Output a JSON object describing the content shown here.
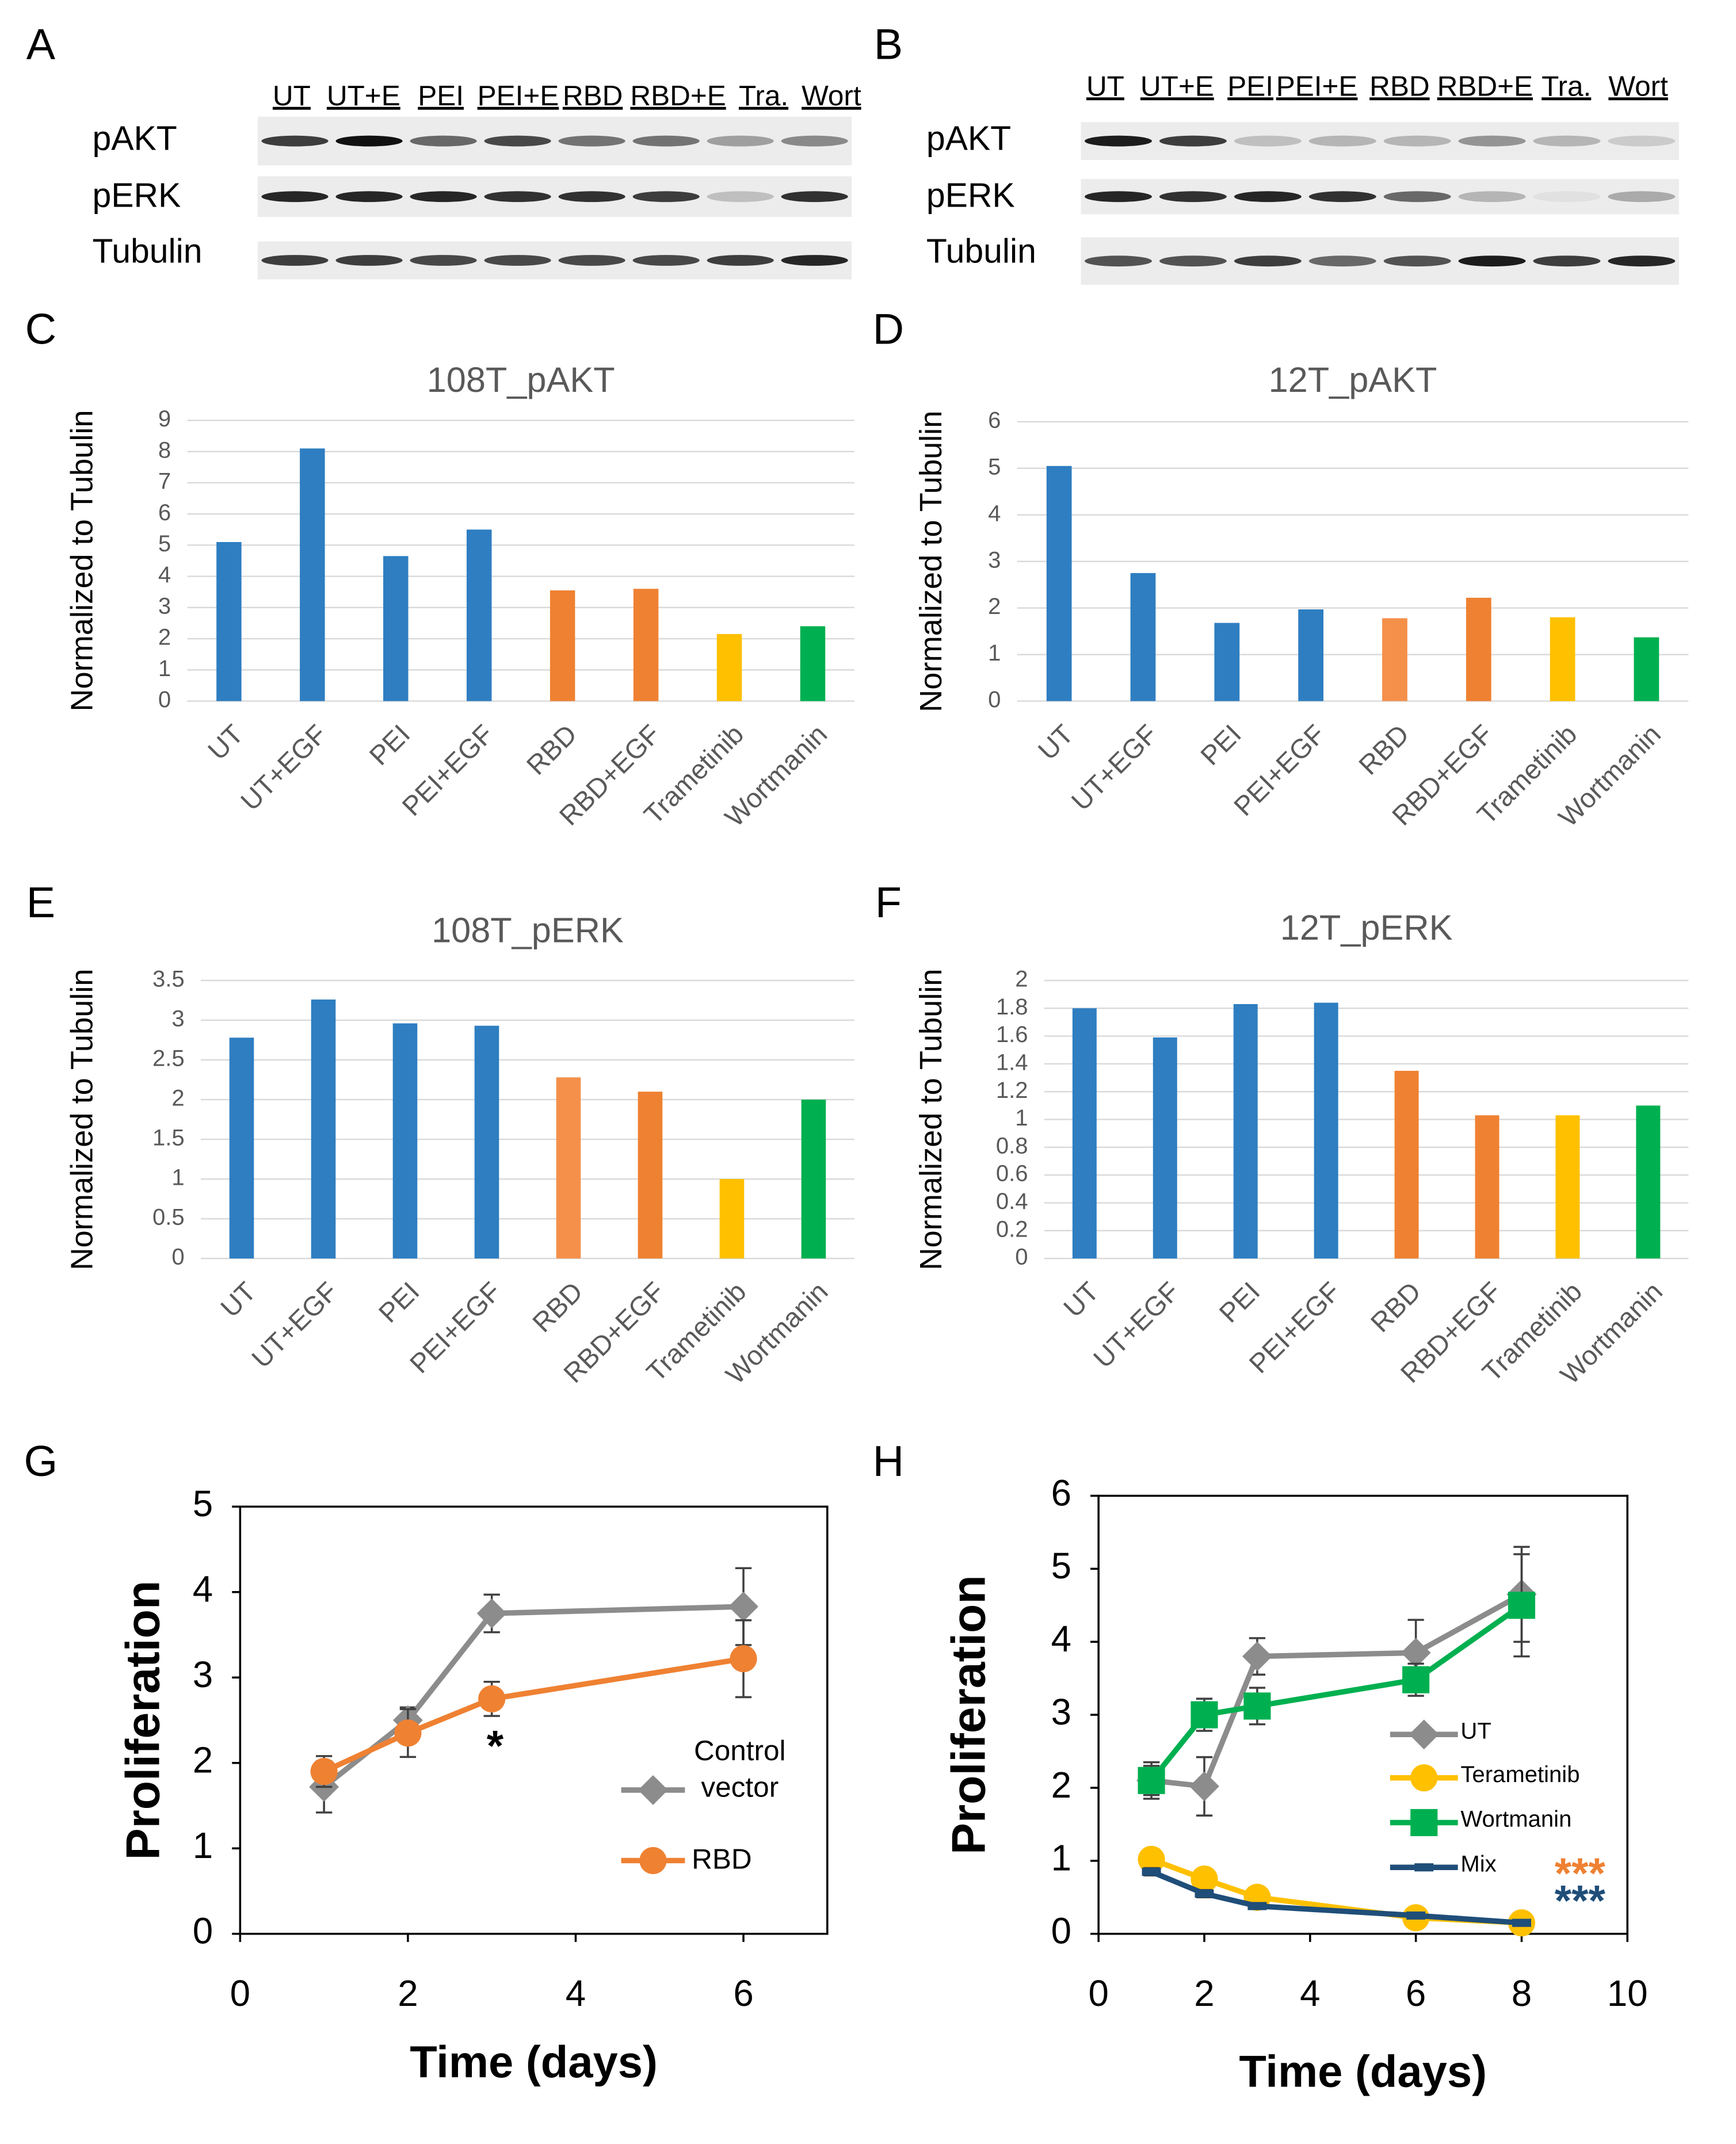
{
  "panel_labels": [
    "A",
    "B",
    "C",
    "D",
    "E",
    "F",
    "G",
    "H"
  ],
  "blots": [
    {
      "lanes": [
        "UT",
        "UT+E",
        "PEI",
        "PEI+E",
        "RBD",
        "RBD+E",
        "Tra.",
        "Wort"
      ],
      "rows": [
        "pAKT",
        "pERK",
        "Tubulin"
      ]
    },
    {
      "lanes": [
        "UT",
        "UT+E",
        "PEI",
        "PEI+E",
        "RBD",
        "RBD+E",
        "Tra.",
        "Wort"
      ],
      "rows": [
        "pAKT",
        "pERK",
        "Tubulin"
      ]
    }
  ],
  "chart_data": [
    {
      "type": "bar",
      "title": "108T_pAKT",
      "y_label": "Normalized to Tubulin",
      "categories": [
        "UT",
        "UT+EGF",
        "PEI",
        "PEI+EGF",
        "RBD",
        "RBD+EGF",
        "Trametinib",
        "Wortmanin"
      ],
      "values": [
        5.1,
        8.1,
        4.65,
        5.5,
        3.55,
        3.6,
        2.15,
        2.4
      ],
      "colors": [
        "#2e7ec1",
        "#2e7ec1",
        "#2e7ec1",
        "#2e7ec1",
        "#ef8132",
        "#ef8132",
        "#ffc000",
        "#00b050"
      ],
      "ylim": [
        0,
        9
      ],
      "yticks": [
        0,
        1,
        2,
        3,
        4,
        5,
        6,
        7,
        8,
        9
      ],
      "grid": true
    },
    {
      "type": "bar",
      "title": "12T_pAKT",
      "y_label": "Normalized to Tubulin",
      "categories": [
        "UT",
        "UT+EGF",
        "PEI",
        "PEI+EGF",
        "RBD",
        "RBD+EGF",
        "Trametinib",
        "Wortmanin"
      ],
      "values": [
        5.05,
        2.75,
        1.68,
        1.97,
        1.78,
        2.22,
        1.8,
        1.37
      ],
      "colors": [
        "#2e7ec1",
        "#2e7ec1",
        "#2e7ec1",
        "#2e7ec1",
        "#f4904a",
        "#ef8132",
        "#ffc000",
        "#00b050"
      ],
      "ylim": [
        0,
        6
      ],
      "yticks": [
        0,
        1,
        2,
        3,
        4,
        5,
        6
      ],
      "grid": true
    },
    {
      "type": "bar",
      "title": "108T_pERK",
      "y_label": "Normalized to Tubulin",
      "categories": [
        "UT",
        "UT+EGF",
        "PEI",
        "PEI+EGF",
        "RBD",
        "RBD+EGF",
        "Trametinib",
        "Wortmanin"
      ],
      "values": [
        2.78,
        3.26,
        2.96,
        2.93,
        2.28,
        2.1,
        1.0,
        2.0
      ],
      "colors": [
        "#2e7ec1",
        "#2e7ec1",
        "#2e7ec1",
        "#2e7ec1",
        "#f4904a",
        "#ef8132",
        "#ffc000",
        "#00b050"
      ],
      "ylim": [
        0,
        3.5
      ],
      "yticks": [
        0,
        0.5,
        1,
        1.5,
        2,
        2.5,
        3,
        3.5
      ],
      "grid": true
    },
    {
      "type": "bar",
      "title": "12T_pERK",
      "y_label": "Normalized to Tubulin",
      "categories": [
        "UT",
        "UT+EGF",
        "PEI",
        "PEI+EGF",
        "RBD",
        "RBD+EGF",
        "Trametinib",
        "Wortmanin"
      ],
      "values": [
        1.8,
        1.59,
        1.83,
        1.84,
        1.35,
        1.03,
        1.03,
        1.1
      ],
      "colors": [
        "#2e7ec1",
        "#2e7ec1",
        "#2e7ec1",
        "#2e7ec1",
        "#ef8132",
        "#ef8132",
        "#ffc000",
        "#00b050"
      ],
      "ylim": [
        0,
        2
      ],
      "yticks": [
        0,
        0.2,
        0.4,
        0.6,
        0.8,
        1,
        1.2,
        1.4,
        1.6,
        1.8,
        2
      ],
      "grid": true
    },
    {
      "type": "line",
      "x_label": "Time (days)",
      "y_label": "Proliferation",
      "x": [
        1,
        2,
        3,
        6
      ],
      "xlim": [
        0,
        7
      ],
      "xticks": [
        0,
        2,
        4,
        6
      ],
      "ylim": [
        0,
        5
      ],
      "yticks": [
        0,
        1,
        2,
        3,
        4,
        5
      ],
      "series": [
        {
          "name": "Control vector",
          "color": "#8c8c8c",
          "marker": "diamond",
          "values": [
            1.72,
            2.5,
            3.75,
            3.83
          ],
          "errors": [
            0.3,
            0.15,
            0.22,
            0.45
          ]
        },
        {
          "name": "RBD",
          "color": "#ef8132",
          "marker": "circle",
          "values": [
            1.9,
            2.35,
            2.75,
            3.22
          ],
          "errors": [
            0.18,
            0.28,
            0.2,
            0.45
          ]
        }
      ],
      "annotations": [
        {
          "text": "*",
          "color": "#000000"
        }
      ]
    },
    {
      "type": "line",
      "x_label": "Time (days)",
      "y_label": "Proliferation",
      "x": [
        1,
        2,
        3,
        6,
        8
      ],
      "xlim": [
        0,
        10
      ],
      "xticks": [
        0,
        2,
        4,
        6,
        8,
        10
      ],
      "ylim": [
        0,
        6
      ],
      "yticks": [
        0,
        1,
        2,
        3,
        4,
        5,
        6
      ],
      "series": [
        {
          "name": "UT",
          "color": "#8c8c8c",
          "marker": "diamond",
          "values": [
            2.1,
            2.02,
            3.8,
            3.85,
            4.65
          ],
          "errors": [
            0.2,
            0.4,
            0.25,
            0.45,
            0.65
          ]
        },
        {
          "name": "Terametinib",
          "color": "#ffc000",
          "marker": "circle",
          "values": [
            1.02,
            0.75,
            0.5,
            0.22,
            0.15
          ],
          "errors": [
            0.05,
            0.05,
            0.05,
            0.03,
            0.03
          ]
        },
        {
          "name": "Wortmanin",
          "color": "#00b050",
          "marker": "square",
          "values": [
            2.1,
            3.0,
            3.12,
            3.48,
            4.5
          ],
          "errors": [
            0.25,
            0.22,
            0.25,
            0.22,
            0.7
          ]
        },
        {
          "name": "Mix",
          "color": "#1f4e79",
          "marker": "dash",
          "values": [
            0.85,
            0.55,
            0.38,
            0.25,
            0.15
          ],
          "errors": [
            0.05,
            0.05,
            0.03,
            0.03,
            0.03
          ]
        }
      ],
      "annotations": [
        {
          "text": "***",
          "color": "#ef8132"
        },
        {
          "text": "***",
          "color": "#1f4e79"
        }
      ]
    }
  ]
}
